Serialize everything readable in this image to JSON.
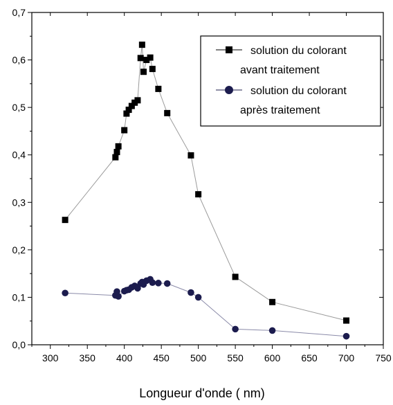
{
  "chart_data": {
    "type": "scatter",
    "xlabel": "Longueur d'onde ( nm)",
    "ylabel": "",
    "xlim": [
      275,
      750
    ],
    "ylim": [
      0,
      0.7
    ],
    "x_ticks": [
      300,
      350,
      400,
      450,
      500,
      550,
      600,
      650,
      700,
      750
    ],
    "x_tick_labels": [
      "300",
      "350",
      "400",
      "450",
      "500",
      "550",
      "600",
      "650",
      "700",
      "750"
    ],
    "y_ticks": [
      0.0,
      0.1,
      0.2,
      0.3,
      0.4,
      0.5,
      0.6,
      0.7
    ],
    "y_tick_labels": [
      "0,0",
      "0,1",
      "0,2",
      "0,3",
      "0,4",
      "0,5",
      "0,6",
      "0,7"
    ],
    "grid": false,
    "legend_position": "top-right",
    "series": [
      {
        "name": "solution du colorant avant traitement",
        "legend_lines": [
          "solution du colorant",
          "avant traitement"
        ],
        "marker": "square",
        "marker_color": "#000000",
        "line_color": "#9a9a9a",
        "x": [
          320,
          388,
          390,
          392,
          400,
          403,
          406,
          410,
          414,
          418,
          422,
          424,
          426,
          430,
          435,
          438,
          446,
          458,
          490,
          500,
          550,
          600,
          700
        ],
        "y": [
          0.263,
          0.395,
          0.406,
          0.418,
          0.452,
          0.487,
          0.495,
          0.503,
          0.51,
          0.515,
          0.604,
          0.632,
          0.575,
          0.6,
          0.605,
          0.581,
          0.539,
          0.488,
          0.399,
          0.317,
          0.143,
          0.09,
          0.051
        ]
      },
      {
        "name": "solution du colorant après traitement",
        "legend_lines": [
          "solution du colorant",
          "après traitement"
        ],
        "marker": "circle",
        "marker_color": "#1c1c4e",
        "line_color": "#8a8aa8",
        "x": [
          320,
          388,
          390,
          392,
          400,
          403,
          406,
          410,
          414,
          418,
          422,
          424,
          426,
          430,
          435,
          438,
          446,
          458,
          490,
          500,
          550,
          600,
          700
        ],
        "y": [
          0.109,
          0.104,
          0.112,
          0.102,
          0.113,
          0.115,
          0.116,
          0.121,
          0.124,
          0.119,
          0.129,
          0.132,
          0.127,
          0.135,
          0.138,
          0.131,
          0.13,
          0.129,
          0.11,
          0.1,
          0.033,
          0.03,
          0.018
        ]
      }
    ]
  }
}
